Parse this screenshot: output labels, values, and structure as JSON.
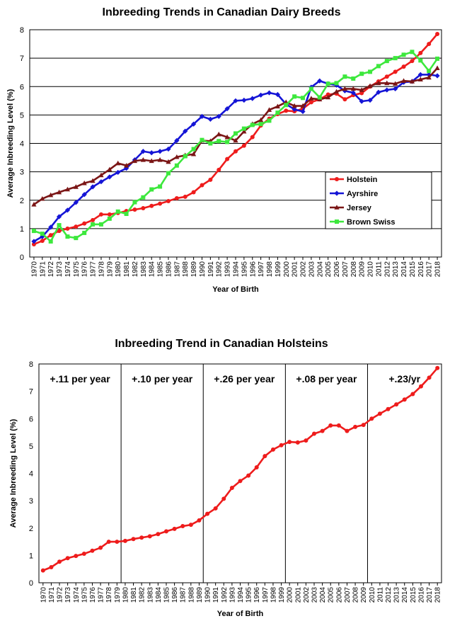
{
  "chart_data": [
    {
      "type": "line",
      "title": "Inbreeding Trends in Canadian Dairy Breeds",
      "xlabel": "Year of Birth",
      "ylabel": "Average Inbreeding Level (%)",
      "ylim": [
        0,
        8
      ],
      "yticks": [
        "0",
        "1",
        "2",
        "3",
        "4",
        "5",
        "6",
        "7",
        "8"
      ],
      "grid": true,
      "legend_position": "right",
      "categories": [
        "1970",
        "1971",
        "1972",
        "1973",
        "1974",
        "1975",
        "1976",
        "1977",
        "1978",
        "1979",
        "1980",
        "1981",
        "1982",
        "1983",
        "1984",
        "1985",
        "1986",
        "1987",
        "1988",
        "1989",
        "1990",
        "1991",
        "1992",
        "1993",
        "1994",
        "1995",
        "1996",
        "1997",
        "1998",
        "1999",
        "2000",
        "2001",
        "2002",
        "2003",
        "2004",
        "2005",
        "2006",
        "2007",
        "2008",
        "2009",
        "2010",
        "2011",
        "2012",
        "2013",
        "2014",
        "2015",
        "2016",
        "2017",
        "2018"
      ],
      "series": [
        {
          "name": "Holstein",
          "color": "#ee1c1c",
          "marker": "circle",
          "values": [
            0.45,
            0.57,
            0.77,
            0.92,
            1.0,
            1.07,
            1.18,
            1.3,
            1.5,
            1.5,
            1.55,
            1.62,
            1.67,
            1.72,
            1.8,
            1.88,
            1.97,
            2.07,
            2.12,
            2.28,
            2.53,
            2.72,
            3.07,
            3.45,
            3.72,
            3.92,
            4.22,
            4.63,
            4.87,
            5.03,
            5.15,
            5.13,
            5.22,
            5.45,
            5.55,
            5.72,
            5.75,
            5.55,
            5.7,
            5.77,
            6.0,
            6.18,
            6.35,
            6.52,
            6.7,
            6.9,
            7.18,
            7.5,
            7.85
          ]
        },
        {
          "name": "Ayrshire",
          "color": "#1515d6",
          "marker": "diamond",
          "values": [
            0.55,
            0.72,
            1.05,
            1.42,
            1.65,
            1.92,
            2.2,
            2.47,
            2.65,
            2.82,
            2.98,
            3.12,
            3.42,
            3.72,
            3.67,
            3.72,
            3.8,
            4.1,
            4.43,
            4.68,
            4.95,
            4.85,
            4.95,
            5.22,
            5.5,
            5.52,
            5.58,
            5.7,
            5.78,
            5.72,
            5.38,
            5.2,
            5.12,
            5.98,
            6.2,
            6.1,
            6.05,
            5.85,
            5.78,
            5.48,
            5.52,
            5.8,
            5.88,
            5.92,
            6.15,
            6.18,
            6.42,
            6.42,
            6.38
          ]
        },
        {
          "name": "Jersey",
          "color": "#7b1616",
          "marker": "triangle",
          "values": [
            1.85,
            2.05,
            2.18,
            2.28,
            2.38,
            2.47,
            2.6,
            2.68,
            2.88,
            3.08,
            3.3,
            3.22,
            3.38,
            3.42,
            3.38,
            3.42,
            3.35,
            3.52,
            3.58,
            3.62,
            4.1,
            4.08,
            4.32,
            4.22,
            4.1,
            4.42,
            4.68,
            4.82,
            5.18,
            5.3,
            5.45,
            5.32,
            5.32,
            5.58,
            5.55,
            5.62,
            5.82,
            5.92,
            5.92,
            5.88,
            6.02,
            6.12,
            6.12,
            6.1,
            6.2,
            6.18,
            6.25,
            6.32,
            6.65
          ]
        },
        {
          "name": "Brown Swiss",
          "color": "#3de83d",
          "marker": "square",
          "values": [
            0.92,
            0.82,
            0.55,
            1.12,
            0.72,
            0.67,
            0.85,
            1.15,
            1.15,
            1.35,
            1.6,
            1.52,
            1.93,
            2.1,
            2.38,
            2.48,
            2.95,
            3.22,
            3.55,
            3.8,
            4.12,
            4.0,
            4.08,
            4.05,
            4.35,
            4.52,
            4.65,
            4.68,
            4.8,
            5.08,
            5.35,
            5.65,
            5.6,
            5.92,
            5.62,
            6.1,
            6.12,
            6.35,
            6.28,
            6.45,
            6.52,
            6.72,
            6.9,
            7.0,
            7.12,
            7.22,
            6.92,
            6.55,
            6.98
          ]
        }
      ]
    },
    {
      "type": "line",
      "title": "Inbreeding Trend in Canadian Holsteins",
      "xlabel": "Year of Birth",
      "ylabel": "Average Inbreeding Level (%)",
      "ylim": [
        0,
        8
      ],
      "yticks": [
        "0",
        "1",
        "2",
        "3",
        "4",
        "5",
        "6",
        "7",
        "8"
      ],
      "grid": false,
      "categories": [
        "1970",
        "1971",
        "1972",
        "1973",
        "1974",
        "1975",
        "1976",
        "1977",
        "1978",
        "1979",
        "1980",
        "1981",
        "1982",
        "1983",
        "1984",
        "1985",
        "1986",
        "1987",
        "1988",
        "1989",
        "1990",
        "1991",
        "1992",
        "1993",
        "1994",
        "1995",
        "1996",
        "1997",
        "1998",
        "1999",
        "2000",
        "2001",
        "2002",
        "2003",
        "2004",
        "2005",
        "2006",
        "2007",
        "2008",
        "2009",
        "2010",
        "2011",
        "2012",
        "2013",
        "2014",
        "2015",
        "2016",
        "2017",
        "2018"
      ],
      "series": [
        {
          "name": "",
          "color": "#ee1c1c",
          "marker": "circle",
          "values": [
            0.45,
            0.57,
            0.77,
            0.9,
            0.98,
            1.06,
            1.17,
            1.28,
            1.5,
            1.5,
            1.53,
            1.6,
            1.65,
            1.7,
            1.78,
            1.88,
            1.97,
            2.07,
            2.12,
            2.28,
            2.52,
            2.72,
            3.07,
            3.47,
            3.72,
            3.92,
            4.22,
            4.63,
            4.87,
            5.03,
            5.15,
            5.13,
            5.2,
            5.45,
            5.55,
            5.75,
            5.75,
            5.55,
            5.7,
            5.77,
            6.0,
            6.18,
            6.35,
            6.52,
            6.7,
            6.9,
            7.18,
            7.5,
            7.85
          ]
        }
      ],
      "segments": [
        {
          "label": "+.11 per year",
          "start": "1970",
          "end": "1980"
        },
        {
          "label": "+.10 per year",
          "start": "1980",
          "end": "1990"
        },
        {
          "label": "+.26 per year",
          "start": "1990",
          "end": "2000"
        },
        {
          "label": "+.08 per year",
          "start": "2000",
          "end": "2010"
        },
        {
          "label": "+.23/yr",
          "start": "2010",
          "end": "2018"
        }
      ]
    }
  ]
}
